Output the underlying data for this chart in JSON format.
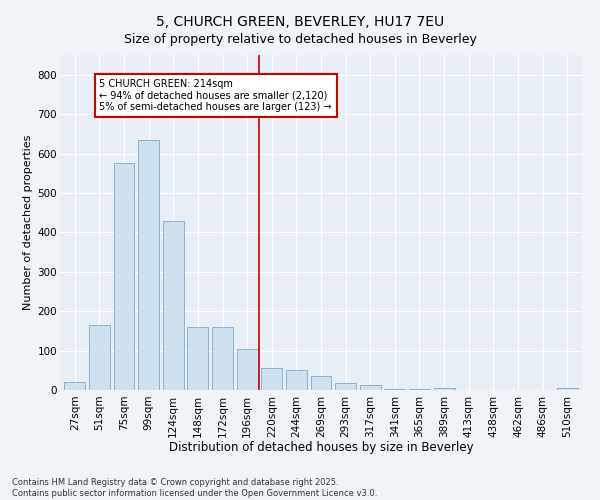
{
  "title": "5, CHURCH GREEN, BEVERLEY, HU17 7EU",
  "subtitle": "Size of property relative to detached houses in Beverley",
  "xlabel": "Distribution of detached houses by size in Beverley",
  "ylabel": "Number of detached properties",
  "categories": [
    "27sqm",
    "51sqm",
    "75sqm",
    "99sqm",
    "124sqm",
    "148sqm",
    "172sqm",
    "196sqm",
    "220sqm",
    "244sqm",
    "269sqm",
    "293sqm",
    "317sqm",
    "341sqm",
    "365sqm",
    "389sqm",
    "413sqm",
    "438sqm",
    "462sqm",
    "486sqm",
    "510sqm"
  ],
  "values": [
    20,
    165,
    575,
    635,
    430,
    160,
    160,
    103,
    55,
    50,
    35,
    18,
    12,
    3,
    3,
    5,
    1,
    0,
    0,
    0,
    5
  ],
  "bar_color": "#cfe0ef",
  "bar_edge_color": "#7aaac8",
  "annotation_text": "5 CHURCH GREEN: 214sqm\n← 94% of detached houses are smaller (2,120)\n5% of semi-detached houses are larger (123) →",
  "annotation_box_color": "#ffffff",
  "annotation_box_edge_color": "#cc0000",
  "line_color": "#cc0000",
  "ylim": [
    0,
    850
  ],
  "yticks": [
    0,
    100,
    200,
    300,
    400,
    500,
    600,
    700,
    800
  ],
  "background_color": "#f0f4f8",
  "plot_background_color": "#e8eef5",
  "grid_color": "#ffffff",
  "footer_line1": "Contains HM Land Registry data © Crown copyright and database right 2025.",
  "footer_line2": "Contains public sector information licensed under the Open Government Licence v3.0.",
  "title_fontsize": 10,
  "subtitle_fontsize": 9,
  "xlabel_fontsize": 8.5,
  "ylabel_fontsize": 8,
  "tick_fontsize": 7.5,
  "annotation_fontsize": 7,
  "footer_fontsize": 6
}
